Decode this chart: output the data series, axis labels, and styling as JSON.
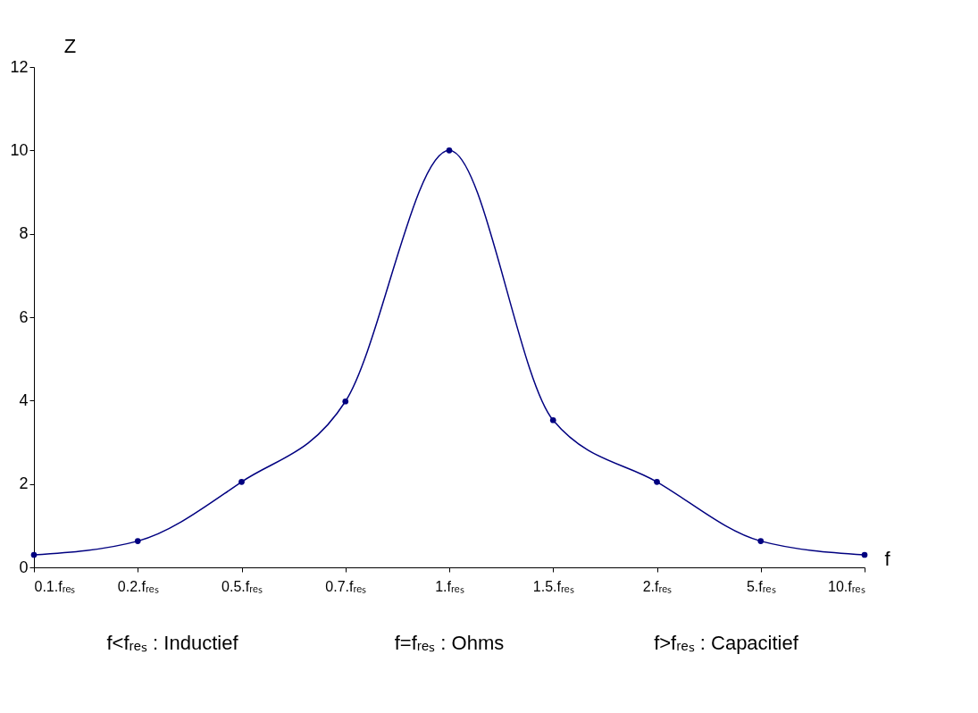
{
  "chart_data": {
    "type": "line",
    "xlabel": "f",
    "ylabel": "Z",
    "categories": [
      "0.1.fᵣₑₛ",
      "0.2.fᵣₑₛ",
      "0.5.fᵣₑₛ",
      "0.7.fᵣₑₛ",
      "1.fᵣₑₛ",
      "1.5.fᵣₑₛ",
      "2.fᵣₑₛ",
      "5.fᵣₑₛ",
      "10.fᵣₑₛ"
    ],
    "series": [
      {
        "color": "#000080",
        "values": [
          0.3,
          0.63,
          2.05,
          3.98,
          10.0,
          3.53,
          2.05,
          0.63,
          0.3
        ]
      }
    ],
    "ylim": [
      0,
      12
    ],
    "yticks": [
      0,
      2,
      4,
      6,
      8,
      10,
      12
    ],
    "grid": false,
    "marker": "circle",
    "line_style": "solid",
    "annotations": [
      "f<fᵣₑₛ : Inductief",
      "f=fᵣₑₛ : Ohms",
      "f>fᵣₑₛ : Capacitief"
    ]
  }
}
